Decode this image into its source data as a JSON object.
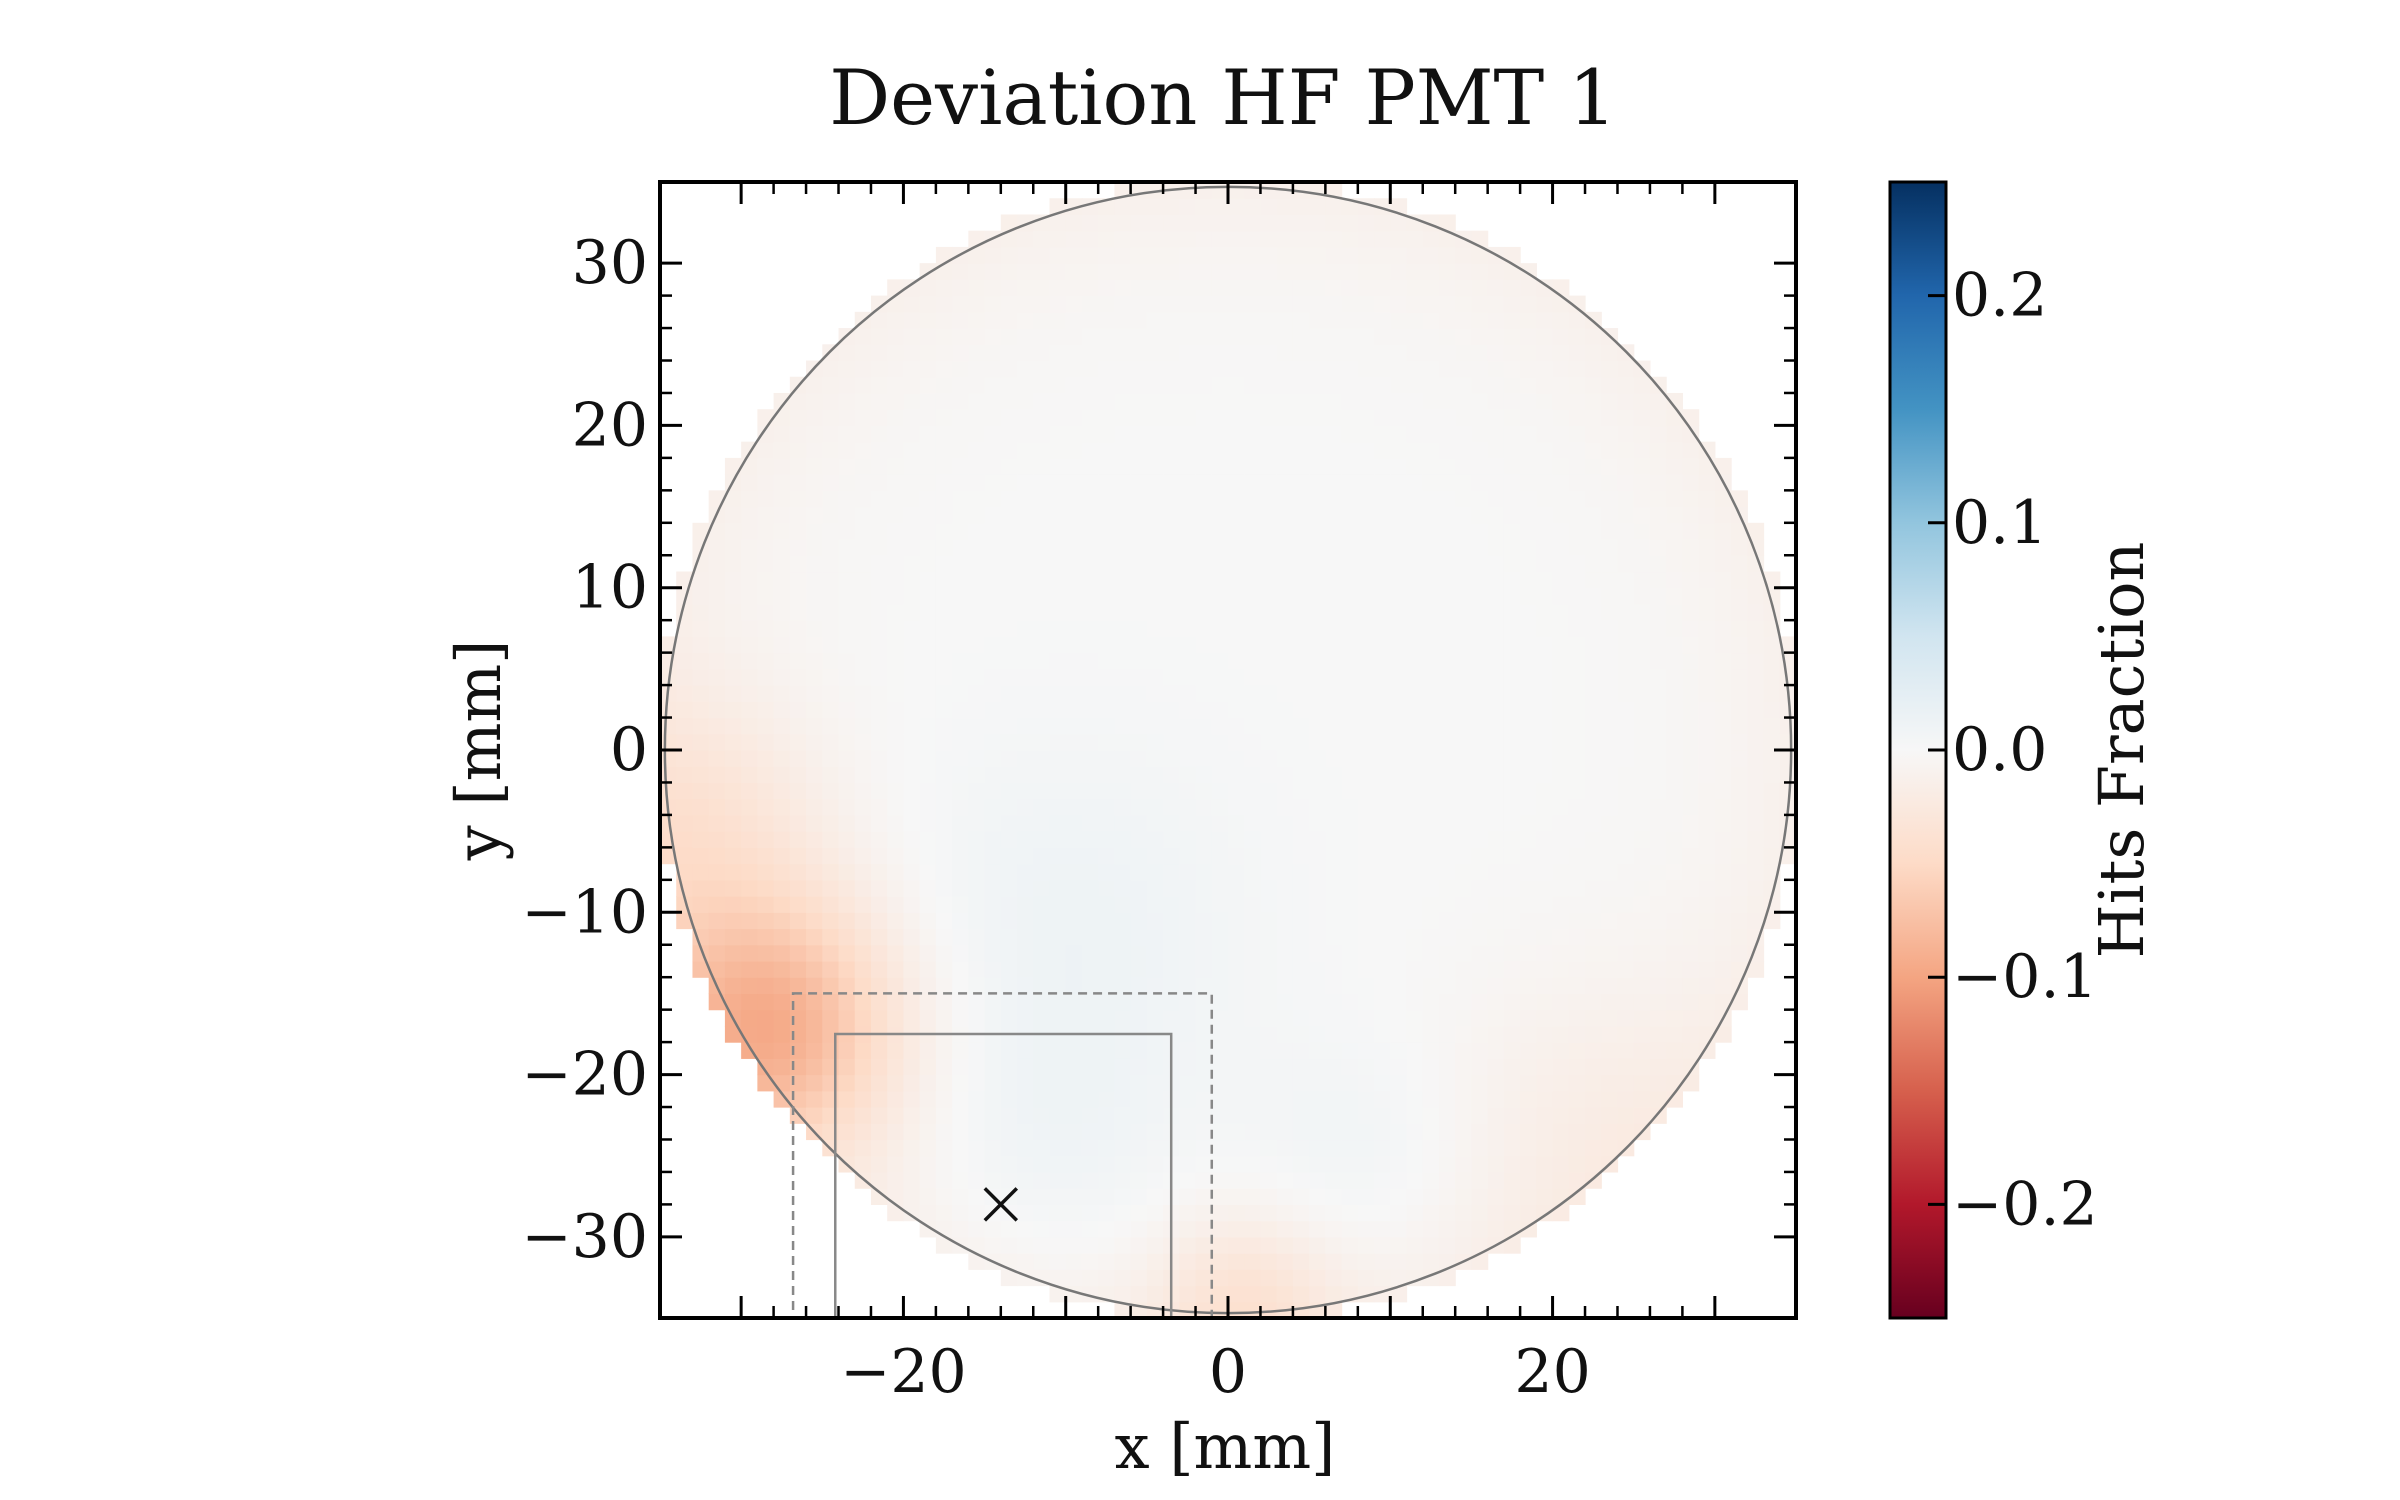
{
  "chart_data": {
    "type": "heatmap",
    "title": "Deviation HF PMT 1",
    "xlabel": "x [mm]",
    "ylabel": "y [mm]",
    "xlim": [
      -35,
      35
    ],
    "ylim": [
      -35,
      35
    ],
    "x_ticks": [
      -20,
      0,
      20
    ],
    "x_tick_labels": [
      "−20",
      "0",
      "20"
    ],
    "y_ticks": [
      30,
      20,
      10,
      0,
      -10,
      -20,
      -30
    ],
    "y_tick_labels": [
      "30",
      "20",
      "10",
      "0",
      "−10",
      "−20",
      "−30"
    ],
    "grid": false,
    "colormap": "RdBu",
    "colorbar": {
      "label": "Hits Fraction",
      "range": [
        -0.25,
        0.25
      ],
      "ticks": [
        0.2,
        0.1,
        0.0,
        -0.1,
        -0.2
      ],
      "tick_labels": [
        "0.2",
        "0.1",
        "0.0",
        "−0.1",
        "−0.2"
      ],
      "colors": [
        "#67001f",
        "#b2182b",
        "#d6604d",
        "#f4a582",
        "#fddbc7",
        "#f7f7f7",
        "#d1e5f0",
        "#92c5de",
        "#4393c3",
        "#2166ac",
        "#053061"
      ]
    },
    "pmt_circle": {
      "center": [
        0,
        0
      ],
      "radius": 34.7
    },
    "solid_box": {
      "x": [
        -24.2,
        -3.5
      ],
      "y": [
        -35,
        -17.5
      ]
    },
    "dashed_box": {
      "x": [
        -26.8,
        -1
      ],
      "y": [
        -35,
        -15
      ]
    },
    "marker": {
      "symbol": "x",
      "x": [
        -14
      ],
      "y": [
        -28
      ]
    },
    "deviation_features": [
      {
        "x": -28,
        "y": -17,
        "sigma": 5.5,
        "value": -0.085
      },
      {
        "x": -33,
        "y": -5,
        "sigma": 6,
        "value": -0.03
      },
      {
        "x": 1,
        "y": -34,
        "sigma": 4,
        "value": -0.03
      },
      {
        "x": 22,
        "y": -23,
        "sigma": 7,
        "value": -0.012
      },
      {
        "x": -10,
        "y": -11,
        "sigma": 8,
        "value": 0.012
      },
      {
        "x": -11,
        "y": -25,
        "sigma": 6,
        "value": 0.01
      },
      {
        "x": 8,
        "y": -25,
        "sigma": 5,
        "value": 0.01
      }
    ],
    "edge_value": -0.012
  }
}
